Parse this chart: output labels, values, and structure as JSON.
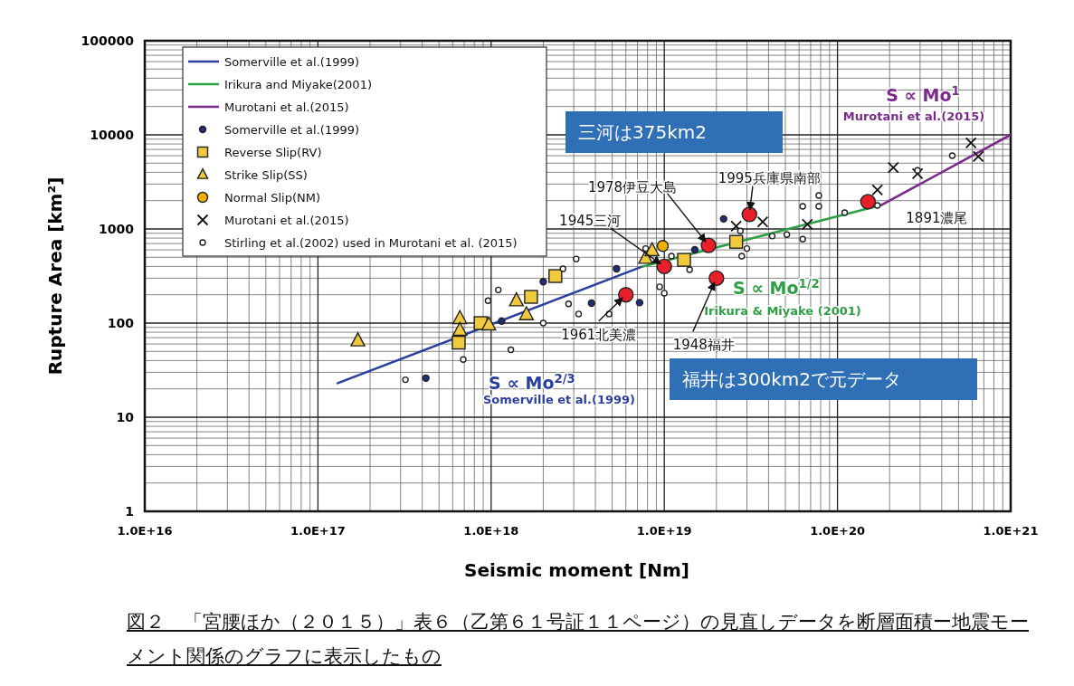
{
  "chart_data": {
    "type": "scatter",
    "xlabel": "Seismic moment [Nm]",
    "ylabel": "Rupture Area [km²]",
    "log": "xy",
    "grid": true,
    "legend": "top left",
    "xlim": [
      1e+16,
      1e+21
    ],
    "ylim": [
      1,
      100000
    ],
    "xticks": [
      {
        "value": 1e+16,
        "label": "1.0E+16"
      },
      {
        "value": 1e+17,
        "label": "1.0E+17"
      },
      {
        "value": 1e+18,
        "label": "1.0E+18"
      },
      {
        "value": 1e+19,
        "label": "1.0E+19"
      },
      {
        "value": 1e+20,
        "label": "1.0E+20"
      },
      {
        "value": 1e+21,
        "label": "1.0E+21"
      }
    ],
    "yticks": [
      1,
      10,
      100,
      1000,
      10000,
      100000
    ],
    "series": [
      {
        "name": "Somerville et al.(1999)",
        "type": "line",
        "color": "#2b3f9e",
        "marker": "none",
        "line_style": "solid",
        "x": [
          1.3e+17,
          7.5e+18
        ],
        "values": [
          23,
          400
        ]
      },
      {
        "name": "Irikura and Miyake(2001)",
        "type": "line",
        "color": "#2ea043",
        "marker": "none",
        "line_style": "solid",
        "x": [
          7.5e+18,
          1.8e+20
        ],
        "values": [
          400,
          1800
        ]
      },
      {
        "name": "Murotani et al.(2015)",
        "type": "line",
        "color": "#7a2a8a",
        "marker": "none",
        "line_style": "solid",
        "x": [
          1.8e+20,
          1e+21
        ],
        "values": [
          1800,
          10000
        ]
      },
      {
        "name": "Somerville et al.(1999)",
        "color": "#1f2d7a",
        "marker": "circle",
        "x": [
          4.2e+17,
          1.15e+18,
          2e+18,
          3.8e+18,
          5.3e+18,
          7.2e+18,
          1.5e+19,
          2.2e+19
        ],
        "values": [
          26,
          105,
          275,
          163,
          378,
          165,
          600,
          1280
        ]
      },
      {
        "name": "Reverse Slip(RV)",
        "color": "#f0c93c",
        "marker": "square",
        "x": [
          6.5e+17,
          8.7e+17,
          1.7e+18,
          2.35e+18,
          1.3e+19,
          2.6e+19
        ],
        "values": [
          62,
          100,
          190,
          316,
          470,
          730
        ]
      },
      {
        "name": "Strike Slip(SS)",
        "color": "#f0c93c",
        "marker": "triangle",
        "x": [
          1.7e+17,
          6.6e+17,
          6.6e+17,
          9.7e+17,
          1.4e+18,
          1.6e+18,
          7.8e+18,
          8.5e+18
        ],
        "values": [
          65,
          112,
          84,
          96,
          173,
          123,
          490,
          590
        ]
      },
      {
        "name": "Normal Slip(NM)",
        "color": "#f0b000",
        "marker": "circle",
        "x": [
          9.8e+18
        ],
        "values": [
          660
        ]
      },
      {
        "name": "Murotani et al.(2015)",
        "color": "#111111",
        "marker": "cross",
        "x": [
          2.6e+19,
          3.7e+19,
          6.7e+19,
          1.7e+20,
          2.1e+20,
          2.9e+20,
          5.9e+20,
          6.5e+20
        ],
        "values": [
          1070,
          1190,
          1120,
          2600,
          4500,
          3870,
          8200,
          5900
        ]
      },
      {
        "name": "Stirling et al.(2002) used in Murotani et al. (2015)",
        "color": "#ffffff",
        "marker": "circle",
        "x": [
          3.2e+17,
          6.9e+17,
          1.3e+18,
          9.6e+17,
          1.1e+18,
          2e+18,
          2.6e+18,
          3.1e+18,
          2.8e+18,
          3.2e+18,
          4.8e+18,
          9.4e+18,
          1e+19,
          1.4e+19,
          1.1e+19,
          2.8e+19,
          3e+19,
          2.75e+19,
          4.2e+19,
          5.1e+19,
          6.3e+19,
          6.3e+19,
          7.8e+19,
          7.8e+19,
          1.1e+20,
          1.7e+20,
          2.9e+20,
          4.6e+20,
          7.8e+18
        ],
        "values": [
          25,
          41,
          52,
          173,
          225,
          100,
          378,
          480,
          160,
          125,
          125,
          243,
          208,
          369,
          515,
          515,
          620,
          950,
          840,
          870,
          780,
          1740,
          1740,
          2270,
          1490,
          1780,
          4200,
          6000,
          620
        ]
      },
      {
        "color": "#e8202a",
        "marker": "circle",
        "x": [
          6e+18,
          1e+19,
          1.8e+19,
          2e+19,
          3.1e+19,
          1.5e+20
        ],
        "values": [
          200,
          400,
          670,
          300,
          1430,
          1950
        ]
      }
    ],
    "annotations": [
      "S ∝ Mo$^{2/3}$",
      "Somerville et al.(1999)",
      "S ∝ Mo$^{1/2}$",
      "Irikura & Miyake (2001)",
      "S ∝ Mo$^{1}$",
      "Murotani et al.(2015)",
      "三河は375km2",
      "福井は300km2で元データ",
      "図２　「宮腰ほか（２０１５）」表６（乙第６１号証１１ページ）の見直しデータを断層面積ー地震モーメント関係のグラフに表示したもの",
      {
        "text": "1961北美濃",
        "x": 6e+18,
        "y": 200
      },
      {
        "text": "1945三河",
        "x": 1e+19,
        "y": 400
      },
      {
        "text": "1978伊豆大島",
        "x": 1.8e+19,
        "y": 670
      },
      {
        "text": "1948福井",
        "x": 2e+19,
        "y": 300
      },
      {
        "text": "1995兵庫県南部",
        "x": 3.1e+19,
        "y": 1430
      },
      {
        "text": "1891濃尾",
        "x": 1.5e+20,
        "y": 1950
      }
    ]
  }
}
